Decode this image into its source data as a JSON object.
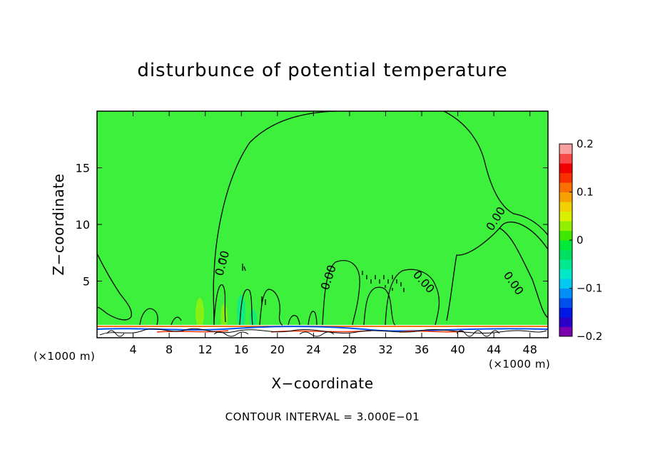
{
  "chart_data": {
    "type": "heatmap",
    "title": "disturbunce of potential temperature",
    "xlabel": "X−coordinate",
    "ylabel": "Z−coordinate",
    "x_unit_label": "(×1000 m)",
    "z_unit_label": "(×1000 m)",
    "footer": "CONTOUR INTERVAL = 3.000E−01",
    "xlim": [
      0,
      50
    ],
    "ylim": [
      0,
      20
    ],
    "x_ticks": [
      4,
      8,
      12,
      16,
      20,
      24,
      28,
      32,
      36,
      40,
      44,
      48
    ],
    "y_ticks": [
      5,
      10,
      15
    ],
    "colorbar": {
      "min": -0.2,
      "max": 0.2,
      "tick_values": [
        0.2,
        0.1,
        0,
        -0.1,
        -0.2
      ],
      "tick_labels": [
        "0.2",
        "0.1",
        "0",
        "−0.1",
        "−0.2"
      ],
      "colors": [
        "#7a00b0",
        "#2a00c8",
        "#0018e6",
        "#0050f0",
        "#0090f8",
        "#00c8f0",
        "#00e8c8",
        "#00e890",
        "#00e060",
        "#00e838",
        "#40e800",
        "#90f000",
        "#d8f000",
        "#f0d000",
        "#f8a000",
        "#f87000",
        "#f83000",
        "#f00000",
        "#f84848",
        "#f8a0a0"
      ]
    },
    "contour_labels": [
      "0.00",
      "0.00",
      "0.00",
      "0.00",
      "0.00",
      "0.00"
    ],
    "background_color": "#3cf03c",
    "grid": false
  }
}
